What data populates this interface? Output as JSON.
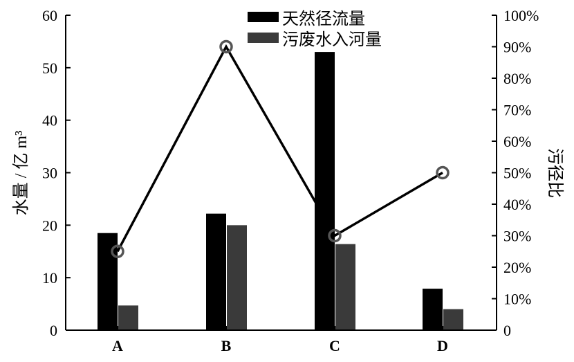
{
  "chart_data": {
    "type": "bar",
    "categories": [
      "A",
      "B",
      "C",
      "D"
    ],
    "series": [
      {
        "name": "天然径流量",
        "axis": "left",
        "type": "bar",
        "color": "#000000",
        "values": [
          18.5,
          22.2,
          53.0,
          7.9
        ]
      },
      {
        "name": "污废水入河量",
        "axis": "left",
        "type": "bar",
        "color": "#3a3a3a",
        "values": [
          4.7,
          20.0,
          16.4,
          4.0
        ]
      },
      {
        "name": "",
        "axis": "right",
        "type": "line",
        "marker": "circle",
        "color": "#000000",
        "values": [
          25,
          90,
          30,
          50
        ]
      }
    ],
    "ylabel": "水量 / 亿 m³",
    "ylabel_right": "污径比",
    "ylim": [
      0,
      60
    ],
    "ylim_right": [
      0,
      100
    ],
    "yticks": [
      "0",
      "10",
      "20",
      "30",
      "40",
      "50",
      "60"
    ],
    "yticks_right": [
      "0",
      "10%",
      "20%",
      "30%",
      "40%",
      "50%",
      "60%",
      "70%",
      "80%",
      "90%",
      "100%"
    ],
    "grid": false,
    "legend_position": "top-center"
  }
}
